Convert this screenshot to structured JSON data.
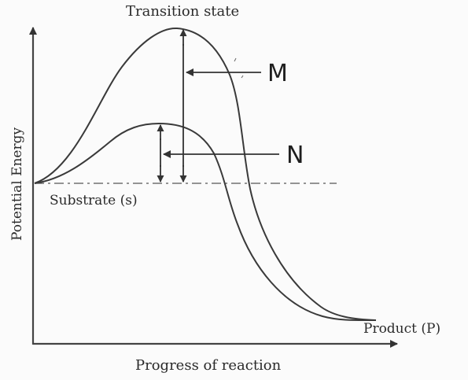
{
  "diagram": {
    "labels": {
      "transition_state": "Transition state",
      "substrate": "Substrate (s)",
      "product": "Product (P)",
      "y_axis": "Potential Energy",
      "x_axis": "Progress of reaction",
      "m": "M",
      "n": "N"
    },
    "curves": [
      "uncatalysed-curve",
      "catalysed-curve"
    ],
    "colors": {
      "line": "#3a3a3a",
      "background": "#fbfbfb",
      "text": "#2a2a2a"
    }
  }
}
